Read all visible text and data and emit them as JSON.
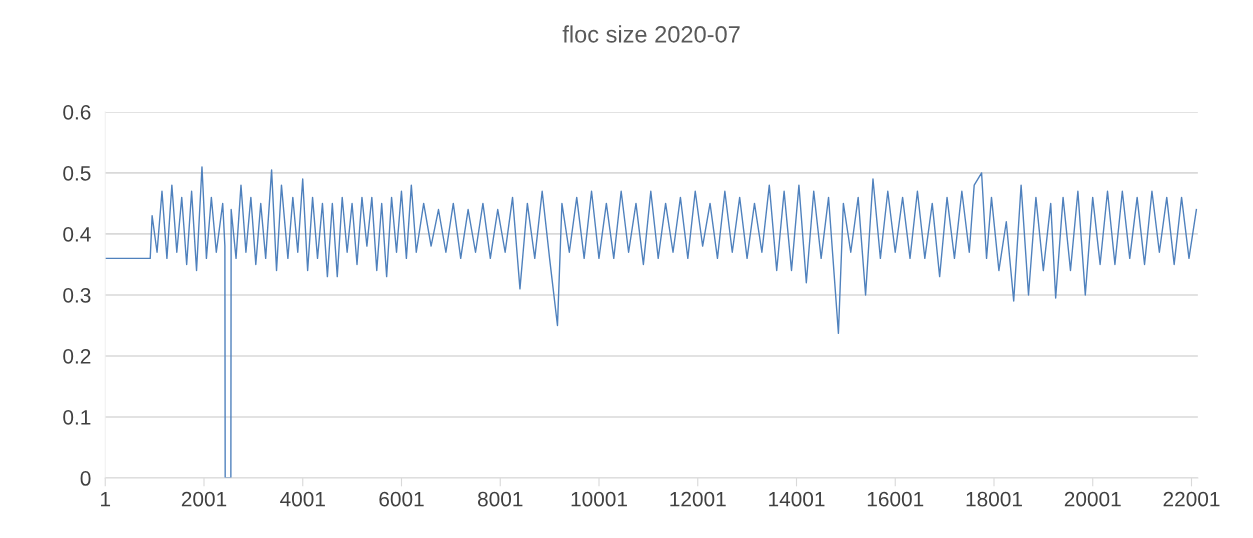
{
  "chart_data": {
    "type": "line",
    "title": "floc size 2020-07",
    "x": [
      1,
      912,
      950,
      1050,
      1150,
      1250,
      1350,
      1450,
      1550,
      1650,
      1750,
      1850,
      1960,
      2050,
      2150,
      2250,
      2380,
      2424,
      2430,
      2545,
      2551,
      2650,
      2750,
      2850,
      2950,
      3050,
      3150,
      3250,
      3370,
      3470,
      3570,
      3700,
      3800,
      3900,
      4000,
      4100,
      4200,
      4300,
      4400,
      4500,
      4600,
      4700,
      4800,
      4900,
      5000,
      5100,
      5200,
      5300,
      5400,
      5500,
      5600,
      5700,
      5800,
      5900,
      6000,
      6100,
      6200,
      6300,
      6450,
      6600,
      6750,
      6900,
      7050,
      7200,
      7350,
      7500,
      7650,
      7800,
      7950,
      8100,
      8250,
      8400,
      8550,
      8700,
      8850,
      9000,
      9160,
      9250,
      9400,
      9550,
      9700,
      9850,
      10000,
      10150,
      10300,
      10450,
      10600,
      10750,
      10900,
      11050,
      11200,
      11350,
      11500,
      11650,
      11800,
      11950,
      12100,
      12250,
      12400,
      12550,
      12700,
      12850,
      13000,
      13150,
      13300,
      13450,
      13600,
      13750,
      13900,
      14050,
      14200,
      14350,
      14500,
      14650,
      14850,
      14950,
      15100,
      15250,
      15400,
      15550,
      15700,
      15850,
      16000,
      16150,
      16300,
      16450,
      16600,
      16750,
      16900,
      17050,
      17200,
      17350,
      17500,
      17600,
      17750,
      17850,
      17950,
      18100,
      18250,
      18400,
      18550,
      18700,
      18850,
      19000,
      19150,
      19250,
      19400,
      19550,
      19700,
      19850,
      20000,
      20150,
      20300,
      20450,
      20600,
      20750,
      20900,
      21050,
      21200,
      21350,
      21500,
      21650,
      21800,
      21950,
      22100
    ],
    "series": [
      {
        "color": "#4f81bd",
        "values": [
          0.36,
          0.36,
          0.43,
          0.37,
          0.47,
          0.36,
          0.48,
          0.37,
          0.46,
          0.35,
          0.47,
          0.34,
          0.51,
          0.36,
          0.46,
          0.37,
          0.45,
          0.38,
          0,
          0,
          0.44,
          0.36,
          0.48,
          0.37,
          0.46,
          0.35,
          0.45,
          0.36,
          0.505,
          0.34,
          0.48,
          0.36,
          0.46,
          0.37,
          0.49,
          0.34,
          0.46,
          0.36,
          0.45,
          0.33,
          0.45,
          0.33,
          0.46,
          0.37,
          0.45,
          0.35,
          0.46,
          0.38,
          0.46,
          0.34,
          0.45,
          0.33,
          0.46,
          0.37,
          0.47,
          0.36,
          0.48,
          0.37,
          0.45,
          0.38,
          0.44,
          0.37,
          0.45,
          0.36,
          0.44,
          0.37,
          0.45,
          0.36,
          0.44,
          0.37,
          0.46,
          0.31,
          0.45,
          0.36,
          0.47,
          0.36,
          0.25,
          0.45,
          0.37,
          0.46,
          0.36,
          0.47,
          0.36,
          0.45,
          0.36,
          0.47,
          0.37,
          0.45,
          0.35,
          0.47,
          0.36,
          0.45,
          0.37,
          0.46,
          0.36,
          0.47,
          0.38,
          0.45,
          0.36,
          0.47,
          0.37,
          0.46,
          0.36,
          0.45,
          0.37,
          0.48,
          0.34,
          0.47,
          0.34,
          0.48,
          0.32,
          0.47,
          0.36,
          0.46,
          0.237,
          0.45,
          0.37,
          0.46,
          0.3,
          0.49,
          0.36,
          0.47,
          0.37,
          0.46,
          0.36,
          0.47,
          0.36,
          0.45,
          0.33,
          0.46,
          0.36,
          0.47,
          0.37,
          0.48,
          0.5,
          0.36,
          0.46,
          0.34,
          0.42,
          0.29,
          0.48,
          0.3,
          0.46,
          0.34,
          0.45,
          0.295,
          0.46,
          0.34,
          0.47,
          0.3,
          0.46,
          0.35,
          0.47,
          0.35,
          0.47,
          0.36,
          0.46,
          0.35,
          0.47,
          0.37,
          0.46,
          0.35,
          0.46,
          0.36,
          0.44
        ]
      }
    ],
    "xlim": [
      1,
      22130
    ],
    "xticks": [
      1,
      2001,
      4001,
      6001,
      8001,
      10001,
      12001,
      14001,
      16001,
      18001,
      20001,
      22001
    ],
    "ylim": [
      0,
      0.6
    ],
    "yticks": [
      0,
      0.1,
      0.2,
      0.3,
      0.4,
      0.5,
      0.6
    ],
    "grid": "y",
    "marker": "none",
    "line_style": "solid"
  }
}
